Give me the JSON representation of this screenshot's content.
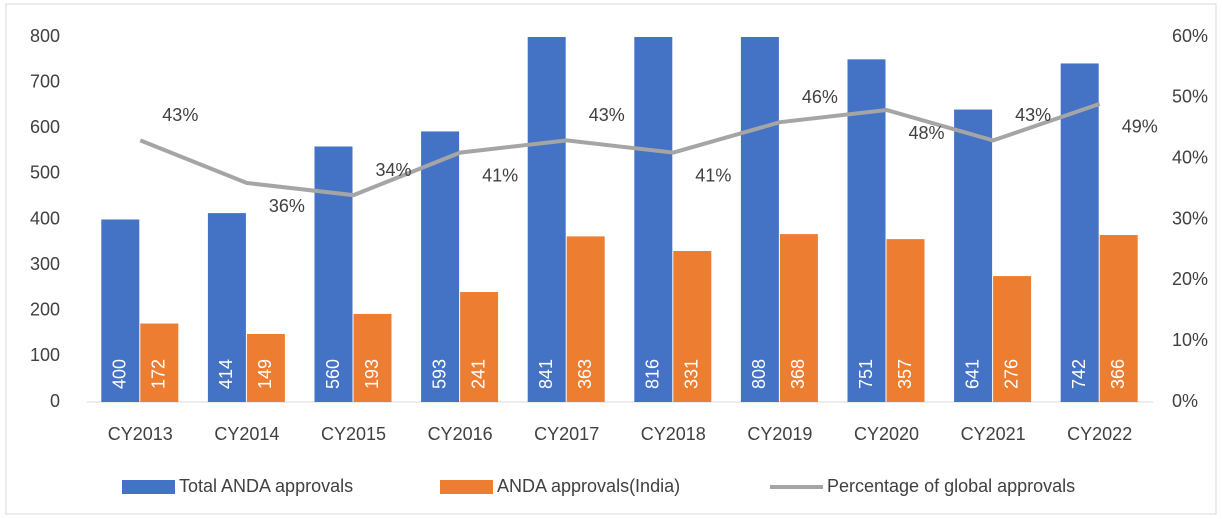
{
  "chart_data": {
    "type": "bar",
    "categories": [
      "CY2013",
      "CY2014",
      "CY2015",
      "CY2016",
      "CY2017",
      "CY2018",
      "CY2019",
      "CY2020",
      "CY2021",
      "CY2022"
    ],
    "series": [
      {
        "name": "Total ANDA approvals",
        "color": "#4472c4",
        "type": "bar",
        "values": [
          400,
          414,
          560,
          593,
          841,
          816,
          808,
          751,
          641,
          742
        ]
      },
      {
        "name": "ANDA approvals(India)",
        "color": "#ed7d31",
        "type": "bar",
        "values": [
          172,
          149,
          193,
          241,
          363,
          331,
          368,
          357,
          276,
          366
        ]
      },
      {
        "name": "Percentage of global approvals",
        "color": "#a5a5a5",
        "type": "line",
        "axis": "y2",
        "values": [
          43,
          36,
          34,
          41,
          43,
          41,
          46,
          48,
          43,
          49
        ],
        "value_labels": [
          "43%",
          "36%",
          "34%",
          "41%",
          "43%",
          "41%",
          "46%",
          "48%",
          "43%",
          "49%"
        ]
      }
    ],
    "ylim": [
      0,
      800
    ],
    "yticks": [
      0,
      100,
      200,
      300,
      400,
      500,
      600,
      700,
      800
    ],
    "y2lim": [
      0,
      60
    ],
    "y2ticks": [
      {
        "value": 0,
        "label": "0%"
      },
      {
        "value": 10,
        "label": "10%"
      },
      {
        "value": 20,
        "label": "20%"
      },
      {
        "value": 30,
        "label": "30%"
      },
      {
        "value": 40,
        "label": "40%"
      },
      {
        "value": 50,
        "label": "50%"
      },
      {
        "value": 60,
        "label": "60%"
      }
    ],
    "legend": "bottom"
  }
}
